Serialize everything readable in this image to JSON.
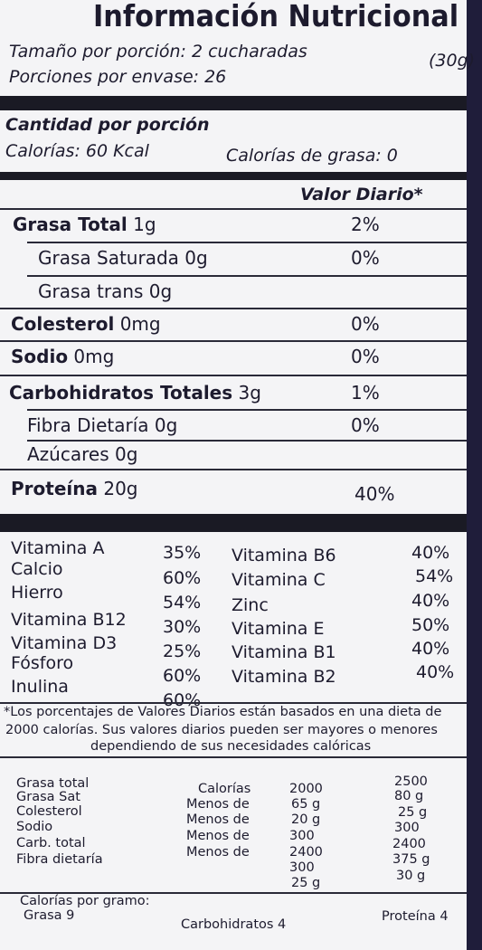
{
  "header": {
    "title": "Información Nutricional",
    "serving_size": "Tamaño por porción: 2 cucharadas",
    "serving_weight": "(30g)",
    "servings_per_container": "Porciones por envase: 26"
  },
  "amount": {
    "heading": "Cantidad por porción",
    "calories": "Calorías: 60 Kcal",
    "fat_calories": "Calorías de grasa: 0"
  },
  "daily_value_heading": "Valor Diario*",
  "nutrients": [
    {
      "name": "Grasa Total",
      "amount": "1g",
      "pct": "2%"
    },
    {
      "name": "Grasa Saturada",
      "amount": "0g",
      "pct": "0%"
    },
    {
      "name": "Grasa trans",
      "amount": "0g",
      "pct": ""
    },
    {
      "name": "Colesterol",
      "amount": "0mg",
      "pct": "0%"
    },
    {
      "name": "Sodio",
      "amount": "0mg",
      "pct": "0%"
    },
    {
      "name": "Carbohidratos Totales",
      "amount": "3g",
      "pct": "1%"
    },
    {
      "name": "Fibra Dietaría",
      "amount": "0g",
      "pct": "0%"
    },
    {
      "name": "Azúcares",
      "amount": "0g",
      "pct": ""
    },
    {
      "name": "Proteína",
      "amount": "20g",
      "pct": "40%"
    }
  ],
  "vitamins_left": [
    {
      "name": "Vitamina A",
      "pct": "35%"
    },
    {
      "name": "Calcio",
      "pct": "60%"
    },
    {
      "name": "Hierro",
      "pct": "54%"
    },
    {
      "name": "Vitamina B12",
      "pct": "30%"
    },
    {
      "name": "Vitamina D3",
      "pct": "25%"
    },
    {
      "name": "Fósforo",
      "pct": "60%"
    },
    {
      "name": "Inulina",
      "pct": "60%"
    }
  ],
  "vitamins_right": [
    {
      "name": "Vitamina B6",
      "pct": "40%"
    },
    {
      "name": "Vitamina C",
      "pct": "54%"
    },
    {
      "name": "Zinc",
      "pct": "40%"
    },
    {
      "name": "Vitamina E",
      "pct": "50%"
    },
    {
      "name": "Vitamina B1",
      "pct": "40%"
    },
    {
      "name": "Vitamina B2",
      "pct": "40%"
    }
  ],
  "footnote": [
    "*Los porcentajes de Valores Diarios están basados en una dieta de",
    "2000 calorías. Sus valores diarios pueden ser mayores o menores",
    "dependiendo de sus necesidades calóricas"
  ],
  "dv_table": {
    "col_nutrients": [
      "Grasa total",
      "Grasa Sat",
      "Colesterol",
      "Sodio",
      "Carb. total",
      "Fibra dietaría"
    ],
    "col_labels": [
      "Calorías",
      "Menos de",
      "Menos de",
      "Menos de",
      "Menos de"
    ],
    "col_2000": [
      "2000",
      "65 g",
      "20 g",
      "300",
      "2400",
      "300",
      "25 g"
    ],
    "col_2500": [
      "2500",
      "80 g",
      "25 g",
      "300",
      "2400",
      "375 g",
      "30 g"
    ]
  },
  "per_gram": {
    "heading": "Calorías por gramo:",
    "fat": "Grasa 9",
    "carbs": "Carbohidratos 4",
    "protein": "Proteína 4"
  }
}
